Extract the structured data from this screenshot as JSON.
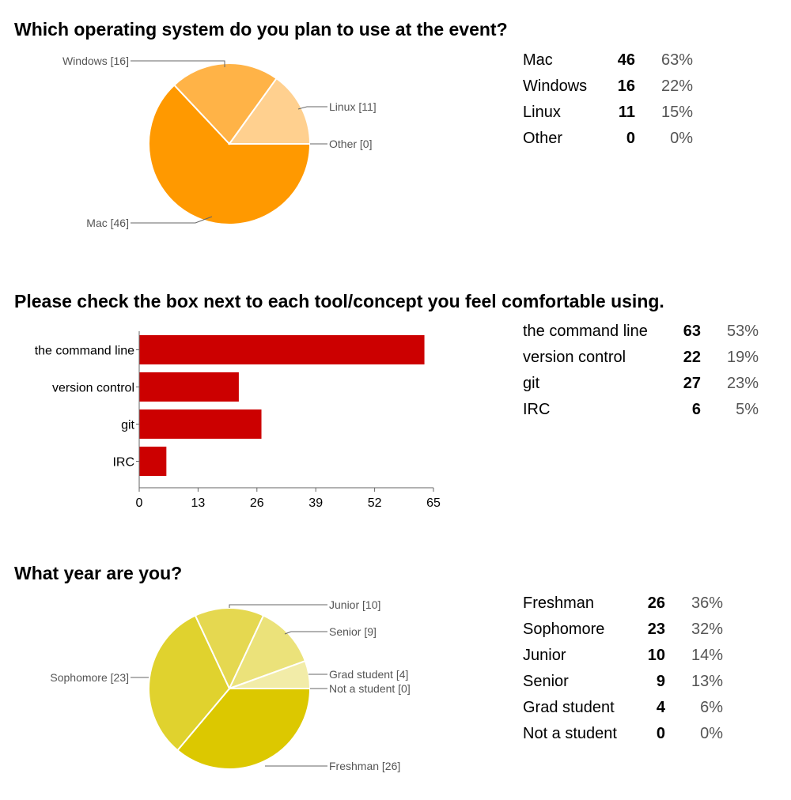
{
  "q1": {
    "title": "Which operating system do you plan to use at the event?",
    "rows": [
      {
        "label": "Mac",
        "count": "46",
        "pct": "63%"
      },
      {
        "label": "Windows",
        "count": "16",
        "pct": "22%"
      },
      {
        "label": "Linux",
        "count": "11",
        "pct": "15%"
      },
      {
        "label": "Other",
        "count": "0",
        "pct": "0%"
      }
    ]
  },
  "q2": {
    "title": "Please check the box next to each tool/concept you feel comfortable using.",
    "rows": [
      {
        "label": "the command line",
        "count": "63",
        "pct": "53%"
      },
      {
        "label": "version control",
        "count": "22",
        "pct": "19%"
      },
      {
        "label": "git",
        "count": "27",
        "pct": "23%"
      },
      {
        "label": "IRC",
        "count": "6",
        "pct": "5%"
      }
    ]
  },
  "q3": {
    "title": "What year are you?",
    "rows": [
      {
        "label": "Freshman",
        "count": "26",
        "pct": "36%"
      },
      {
        "label": "Sophomore",
        "count": "23",
        "pct": "32%"
      },
      {
        "label": "Junior",
        "count": "10",
        "pct": "14%"
      },
      {
        "label": "Senior",
        "count": "9",
        "pct": "13%"
      },
      {
        "label": "Grad student",
        "count": "4",
        "pct": "6%"
      },
      {
        "label": "Not a student",
        "count": "0",
        "pct": "0%"
      }
    ]
  },
  "chart_data": [
    {
      "type": "pie",
      "labels": [
        "Mac",
        "Windows",
        "Linux",
        "Other"
      ],
      "values": [
        46,
        16,
        11,
        0
      ],
      "slice_labels": [
        "Mac [46]",
        "Windows [16]",
        "Linux [11]",
        "Other [0]"
      ],
      "colors": [
        "#ff9900",
        "#ffb347",
        "#ffd08f",
        "#fff0d6"
      ]
    },
    {
      "type": "bar",
      "orientation": "horizontal",
      "categories": [
        "the command line",
        "version control",
        "git",
        "IRC"
      ],
      "values": [
        63,
        22,
        27,
        6
      ],
      "xlim": [
        0,
        65
      ],
      "xticks": [
        0,
        13,
        26,
        39,
        52,
        65
      ],
      "color": "#cc0000"
    },
    {
      "type": "pie",
      "labels": [
        "Freshman",
        "Sophomore",
        "Junior",
        "Senior",
        "Grad student",
        "Not a student"
      ],
      "values": [
        26,
        23,
        10,
        9,
        4,
        0
      ],
      "slice_labels": [
        "Freshman [26]",
        "Sophomore [23]",
        "Junior [10]",
        "Senior [9]",
        "Grad student [4]",
        "Not a student [0]"
      ],
      "colors": [
        "#dcc800",
        "#e0d22e",
        "#e5d850",
        "#ebe27a",
        "#f2eca8",
        "#f8f4d4"
      ]
    }
  ]
}
